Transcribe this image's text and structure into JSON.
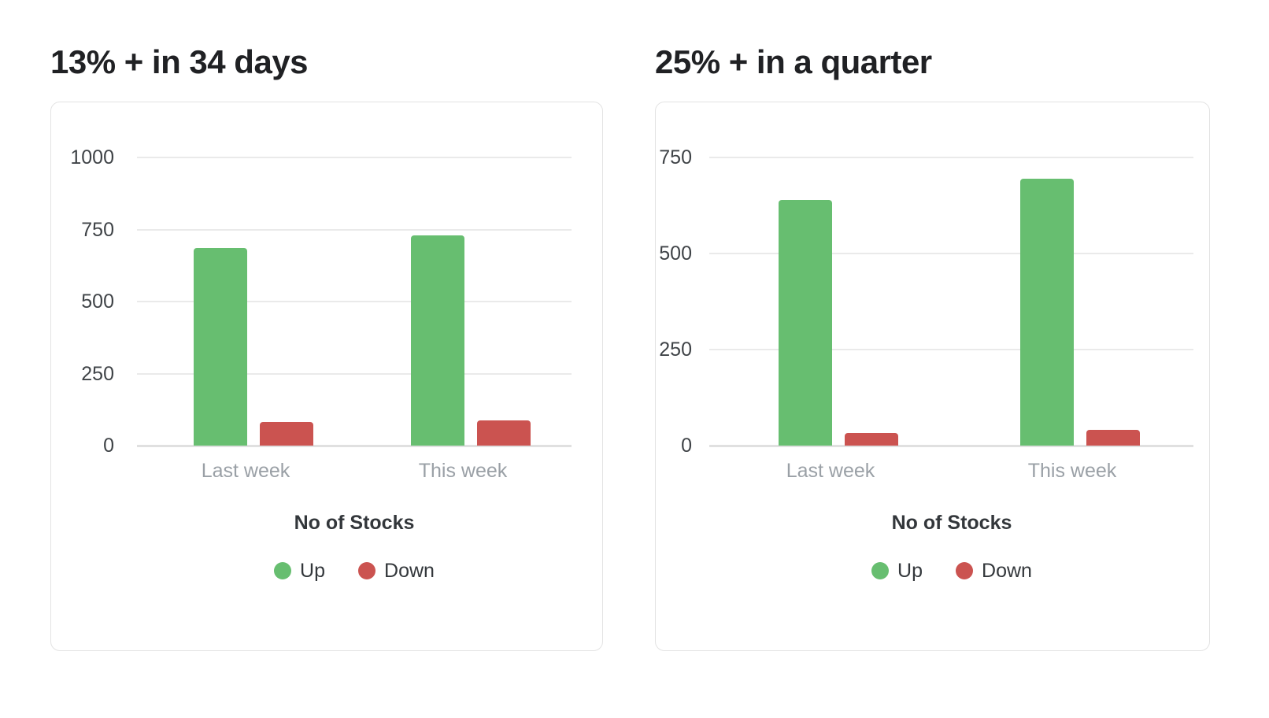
{
  "chart_data": [
    {
      "type": "bar",
      "title": "13% + in 34 days",
      "categories": [
        "Last week",
        "This week"
      ],
      "series": [
        {
          "name": "Up",
          "color": "#67be70",
          "values": [
            685,
            730
          ]
        },
        {
          "name": "Down",
          "color": "#cb5350",
          "values": [
            83,
            88
          ]
        }
      ],
      "xlabel": "No of Stocks",
      "ylabel": "",
      "ylim": [
        0,
        1000
      ],
      "y_ticks": [
        0,
        250,
        500,
        750,
        1000
      ],
      "grid": true,
      "legend_entries": [
        "Up",
        "Down"
      ],
      "legend_position": "bottom"
    },
    {
      "type": "bar",
      "title": "25% + in a quarter",
      "categories": [
        "Last week",
        "This week"
      ],
      "series": [
        {
          "name": "Up",
          "color": "#67be70",
          "values": [
            640,
            695
          ]
        },
        {
          "name": "Down",
          "color": "#cb5350",
          "values": [
            33,
            42
          ]
        }
      ],
      "xlabel": "No of Stocks",
      "ylabel": "",
      "ylim": [
        0,
        750
      ],
      "y_ticks": [
        0,
        250,
        500,
        750
      ],
      "grid": true,
      "legend_entries": [
        "Up",
        "Down"
      ],
      "legend_position": "bottom"
    }
  ],
  "styles": {
    "up_color": "#67be70",
    "down_color": "#cb5350",
    "grid_color": "#eaeaea",
    "axis_line_color": "#e0e0e0",
    "title_color": "#202124",
    "tick_label_color": "#3f4347",
    "category_label_color": "#9aa0a6",
    "text_label_color": "#33373b",
    "card_border_color": "#e3e3e3",
    "background": "#ffffff"
  }
}
